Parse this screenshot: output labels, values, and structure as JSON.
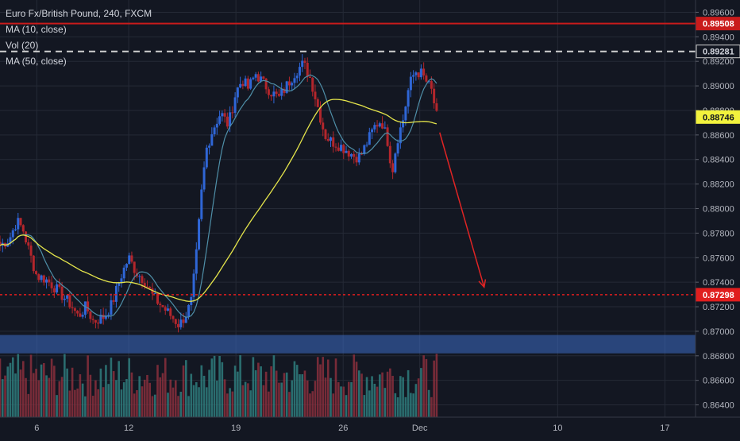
{
  "title": "Euro Fx/British Pound, 240, FXCM",
  "legend": [
    "MA (10, close)",
    "Vol (20)",
    "MA (50, close)"
  ],
  "colors": {
    "background": "#131722",
    "grid": "#252a36",
    "candle_up": "#2f66d6",
    "candle_down": "#b3262c",
    "ma10": "#4f8fa8",
    "ma50": "#e5e54b",
    "vol_up": "#2f7d7c",
    "vol_down": "#8a2f3c",
    "resistance": "#c91b1b",
    "dashed": "#d0d0d0",
    "support": "#e01e1e",
    "zone": "#3d6cc4",
    "arrow": "#e02424",
    "axis_text": "#b2b5be"
  },
  "chart_data": {
    "type": "candlestick",
    "title": "Euro Fx/British Pound, 240, FXCM",
    "ylim": [
      0.863,
      0.897
    ],
    "y_ticks": [
      "0.86400",
      "0.86600",
      "0.86800",
      "0.87000",
      "0.87200",
      "0.87400",
      "0.87600",
      "0.87800",
      "0.88000",
      "0.88200",
      "0.88400",
      "0.88600",
      "0.88800",
      "0.89000",
      "0.89200",
      "0.89400",
      "0.89600"
    ],
    "x_ticks": [
      "6",
      "12",
      "19",
      "26",
      "Dec",
      "10",
      "17"
    ],
    "x_tick_days": [
      6,
      12,
      19,
      26,
      31,
      40,
      47
    ],
    "x_range_days": [
      3.6,
      49.0
    ],
    "price_series": {
      "start_day": 3.6,
      "end_day": 32.1,
      "close_points": [
        [
          3.6,
          0.877
        ],
        [
          4.2,
          0.8775
        ],
        [
          4.7,
          0.879
        ],
        [
          5.1,
          0.8783
        ],
        [
          5.5,
          0.8765
        ],
        [
          6.0,
          0.8745
        ],
        [
          6.5,
          0.8743
        ],
        [
          7.0,
          0.8738
        ],
        [
          7.6,
          0.873
        ],
        [
          8.2,
          0.8722
        ],
        [
          8.7,
          0.8712
        ],
        [
          9.2,
          0.872
        ],
        [
          9.7,
          0.8708
        ],
        [
          10.4,
          0.8712
        ],
        [
          10.9,
          0.8722
        ],
        [
          11.5,
          0.8745
        ],
        [
          12.0,
          0.876
        ],
        [
          12.5,
          0.8748
        ],
        [
          13.0,
          0.8742
        ],
        [
          13.6,
          0.8728
        ],
        [
          14.2,
          0.872
        ],
        [
          14.8,
          0.8712
        ],
        [
          15.3,
          0.8705
        ],
        [
          15.8,
          0.8715
        ],
        [
          16.1,
          0.8725
        ],
        [
          16.4,
          0.876
        ],
        [
          16.6,
          0.879
        ],
        [
          16.8,
          0.882
        ],
        [
          17.1,
          0.885
        ],
        [
          17.5,
          0.8865
        ],
        [
          18.0,
          0.8878
        ],
        [
          18.5,
          0.8868
        ],
        [
          19.0,
          0.8895
        ],
        [
          19.4,
          0.8905
        ],
        [
          19.8,
          0.8898
        ],
        [
          20.3,
          0.891
        ],
        [
          20.8,
          0.8902
        ],
        [
          21.3,
          0.8895
        ],
        [
          21.8,
          0.889
        ],
        [
          22.4,
          0.8902
        ],
        [
          22.9,
          0.8912
        ],
        [
          23.4,
          0.8918
        ],
        [
          23.9,
          0.8905
        ],
        [
          24.4,
          0.888
        ],
        [
          24.8,
          0.886
        ],
        [
          25.2,
          0.8855
        ],
        [
          25.7,
          0.8852
        ],
        [
          26.2,
          0.8848
        ],
        [
          26.7,
          0.8843
        ],
        [
          27.1,
          0.8842
        ],
        [
          27.6,
          0.8855
        ],
        [
          28.1,
          0.8868
        ],
        [
          28.5,
          0.8872
        ],
        [
          28.9,
          0.8855
        ],
        [
          29.2,
          0.883
        ],
        [
          29.5,
          0.8855
        ],
        [
          29.9,
          0.8872
        ],
        [
          30.3,
          0.89
        ],
        [
          30.7,
          0.8912
        ],
        [
          31.1,
          0.891
        ],
        [
          31.5,
          0.8902
        ],
        [
          31.8,
          0.8895
        ],
        [
          32.1,
          0.8875
        ]
      ]
    },
    "last_price": "0.88746",
    "levels": {
      "resistance": "0.89508",
      "dashed_level": "0.89281",
      "support": "0.87298"
    },
    "demand_zone": [
      0.8682,
      0.8697
    ],
    "forecast_arrow": {
      "from": [
        32.3,
        0.8862
      ],
      "to": [
        35.2,
        0.8736
      ]
    }
  }
}
